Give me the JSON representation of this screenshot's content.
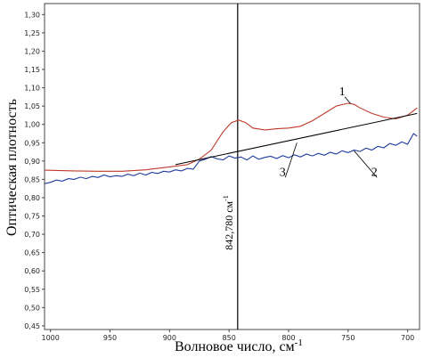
{
  "chart_data": {
    "type": "line",
    "xlabel": "Волновое число, см",
    "xlabel_sup": "-1",
    "ylabel": "Оптическая плотность",
    "xlim": [
      1005,
      690
    ],
    "ylim": [
      0.44,
      1.33
    ],
    "x_reversed": true,
    "grid": false,
    "xticks": [
      1000,
      950,
      900,
      850,
      800,
      750,
      700
    ],
    "yticks": [
      "0,45",
      "0,50",
      "0,55",
      "0,60",
      "0,65",
      "0,70",
      "0,75",
      "0,80",
      "0,85",
      "0,90",
      "0,95",
      "1,00",
      "1,05",
      "1,10",
      "1,15",
      "1,20",
      "1,25",
      "1,30"
    ],
    "ytick_values": [
      0.45,
      0.5,
      0.55,
      0.6,
      0.65,
      0.7,
      0.75,
      0.8,
      0.85,
      0.9,
      0.95,
      1.0,
      1.05,
      1.1,
      1.15,
      1.2,
      1.25,
      1.3
    ],
    "vertical_line": {
      "x": 842.78,
      "label": "842,780 см",
      "label_sup": "-1"
    },
    "series": [
      {
        "color": "#c0392b",
        "x": [
          1005,
          980,
          960,
          940,
          920,
          900,
          885,
          875,
          865,
          855,
          848,
          842,
          836,
          830,
          820,
          810,
          800,
          790,
          780,
          770,
          760,
          750,
          745,
          740,
          730,
          720,
          710,
          700,
          692
        ],
        "y": [
          0.875,
          0.873,
          0.872,
          0.872,
          0.876,
          0.884,
          0.89,
          0.905,
          0.93,
          0.98,
          1.005,
          1.012,
          1.005,
          0.99,
          0.985,
          0.988,
          0.99,
          0.995,
          1.01,
          1.03,
          1.05,
          1.058,
          1.055,
          1.045,
          1.03,
          1.02,
          1.015,
          1.025,
          1.045
        ]
      },
      {
        "color": "#1f3a9e",
        "x": [
          1005,
          1000,
          995,
          990,
          985,
          980,
          975,
          970,
          965,
          960,
          955,
          950,
          945,
          940,
          935,
          930,
          925,
          920,
          915,
          910,
          905,
          900,
          895,
          890,
          885,
          880,
          875,
          870,
          865,
          860,
          855,
          850,
          845,
          840,
          835,
          830,
          825,
          820,
          815,
          810,
          805,
          800,
          795,
          790,
          785,
          780,
          775,
          770,
          765,
          760,
          755,
          750,
          745,
          740,
          735,
          730,
          725,
          720,
          715,
          710,
          705,
          700,
          695,
          692
        ],
        "y": [
          0.838,
          0.842,
          0.848,
          0.845,
          0.852,
          0.85,
          0.856,
          0.852,
          0.858,
          0.855,
          0.862,
          0.857,
          0.86,
          0.858,
          0.864,
          0.86,
          0.867,
          0.862,
          0.869,
          0.866,
          0.872,
          0.87,
          0.876,
          0.873,
          0.88,
          0.878,
          0.9,
          0.905,
          0.912,
          0.906,
          0.903,
          0.914,
          0.908,
          0.911,
          0.903,
          0.914,
          0.905,
          0.91,
          0.913,
          0.907,
          0.915,
          0.909,
          0.917,
          0.911,
          0.919,
          0.914,
          0.921,
          0.916,
          0.924,
          0.919,
          0.928,
          0.923,
          0.93,
          0.926,
          0.935,
          0.93,
          0.94,
          0.936,
          0.948,
          0.943,
          0.952,
          0.946,
          0.975,
          0.968
        ]
      },
      {
        "color": "#000000",
        "x": [
          895,
          692
        ],
        "y": [
          0.89,
          1.03
        ]
      }
    ],
    "annotations": [
      {
        "text": "1",
        "x": 755,
        "y": 1.08,
        "points_to": [
          748,
          1.057
        ]
      },
      {
        "text": "2",
        "x": 728,
        "y": 0.86,
        "points_to": [
          745,
          0.928
        ]
      },
      {
        "text": "3",
        "x": 805,
        "y": 0.86,
        "points_to": [
          793,
          0.95
        ]
      }
    ]
  }
}
